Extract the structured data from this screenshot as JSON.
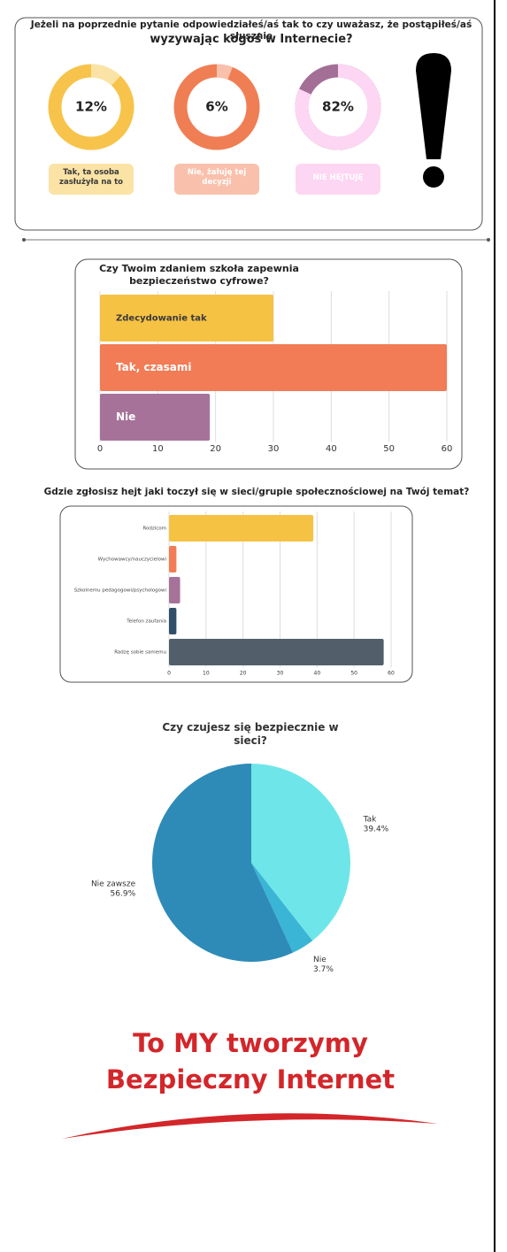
{
  "chart_data": [
    {
      "type": "donut",
      "title": "Jeżeli na poprzednie pytanie odpowiedziałeś/aś tak to czy uważasz, że postąpiłeś/aś słusznie",
      "subtitle": "wyzywając kogoś w Internecie?",
      "categories": [
        "Tak, ta osoba zasłużyła na to",
        "Nie, żałuję tej decyzji",
        "NIE HEJTUJĘ"
      ],
      "values": [
        12,
        6,
        82
      ],
      "value_labels": [
        "12%",
        "6%",
        "82%"
      ],
      "colors": [
        "#fbe3a6",
        "#f9c1ac",
        "#fdd6f3"
      ],
      "track_colors": [
        "#f7c34a",
        "#f07e55",
        "#a36f96"
      ],
      "label_text_colors": [
        "#3a3a3a",
        "#ffffff",
        "#ffffff"
      ]
    },
    {
      "type": "hbar",
      "title": "Czy Twoim zdaniem szkoła zapewnia bezpieczeństwo cyfrowe?",
      "categories": [
        "Zdecydowanie tak",
        "Tak, czasami",
        "Nie"
      ],
      "values": [
        30,
        60,
        19
      ],
      "colors": [
        "#f6c244",
        "#f17c56",
        "#a6729a"
      ],
      "label_text_colors": [
        "#3a3a3a",
        "#ffffff",
        "#ffffff"
      ],
      "xlim": [
        0,
        60
      ],
      "xticks": [
        0,
        10,
        20,
        30,
        40,
        50,
        60
      ],
      "grid": true
    },
    {
      "type": "hbar",
      "title": "Gdzie zgłosisz hejt jaki toczył się w sieci/grupie społecznościowej na Twój temat?",
      "categories": [
        "Rodzicom",
        "Wychowawcy/nauczycielowi",
        "Szkolnemu pedagogowi/psychologowi",
        "Telefon zaufania",
        "Radzę sobie samemu"
      ],
      "values": [
        39,
        2,
        3,
        2,
        58
      ],
      "colors": [
        "#f6c244",
        "#f17c56",
        "#a6729a",
        "#2f4f6a",
        "#525f6b"
      ],
      "xlim": [
        0,
        60
      ],
      "xticks": [
        0,
        10,
        20,
        30,
        40,
        50,
        60
      ],
      "grid": true
    },
    {
      "type": "pie",
      "title": "Czy czujesz się bezpiecznie w sieci?",
      "categories": [
        "Tak",
        "Nie",
        "Nie zawsze"
      ],
      "values": [
        39.4,
        3.7,
        56.9
      ],
      "value_labels": [
        "39.4%",
        "3.7%",
        "56.9%"
      ],
      "colors": [
        "#6ee6e9",
        "#3bb5d6",
        "#2e8bb8"
      ]
    }
  ],
  "footer": {
    "lines": [
      "To MY tworzymy",
      "Bezpieczny Internet"
    ],
    "color": "#d3262a"
  }
}
